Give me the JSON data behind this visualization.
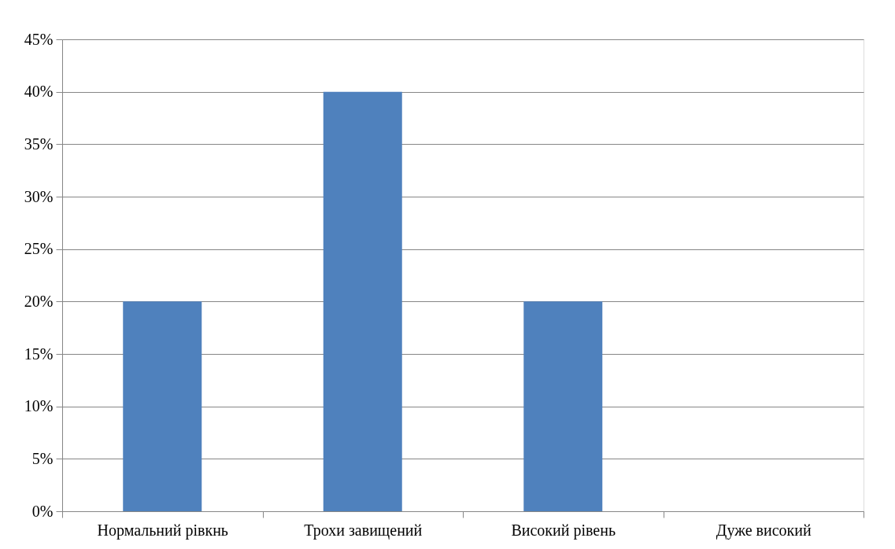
{
  "chart_data": {
    "type": "bar",
    "categories": [
      "Нормальний рівкнь",
      "Трохи завищений",
      "Високий рівень",
      "Дуже високий"
    ],
    "values": [
      20,
      40,
      20,
      0
    ],
    "color": "#4f81bd",
    "ylim": [
      0,
      45
    ],
    "yticks": [
      {
        "value": 0,
        "label": "0%"
      },
      {
        "value": 5,
        "label": "5%"
      },
      {
        "value": 10,
        "label": "10%"
      },
      {
        "value": 15,
        "label": "15%"
      },
      {
        "value": 20,
        "label": "20%"
      },
      {
        "value": 25,
        "label": "25%"
      },
      {
        "value": 30,
        "label": "30%"
      },
      {
        "value": 35,
        "label": "35%"
      },
      {
        "value": 40,
        "label": "40%"
      },
      {
        "value": 45,
        "label": "45%"
      }
    ],
    "grid": "y"
  }
}
